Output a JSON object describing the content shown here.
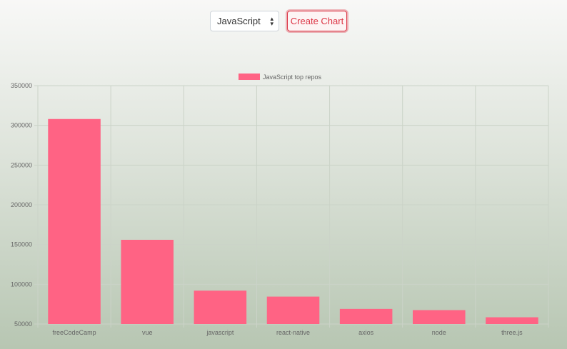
{
  "controls": {
    "language_select": {
      "value": "JavaScript"
    },
    "create_button": {
      "label": "Create Chart"
    }
  },
  "colors": {
    "bar": "#ff6384",
    "grid": "#cbd3c8",
    "button": "#dc3545"
  },
  "chart_data": {
    "type": "bar",
    "title": "",
    "xlabel": "",
    "ylabel": "",
    "categories": [
      "freeCodeCamp",
      "vue",
      "javascript",
      "react-native",
      "axios",
      "node",
      "three.js"
    ],
    "series": [
      {
        "name": "JavaScript top repos",
        "values": [
          308000,
          156000,
          92000,
          84500,
          69000,
          67500,
          58500
        ]
      }
    ],
    "ylim": [
      50000,
      350000
    ],
    "yticks": [
      350000,
      300000,
      250000,
      200000,
      150000,
      100000,
      50000
    ],
    "grid": true,
    "legend": "top-center"
  }
}
